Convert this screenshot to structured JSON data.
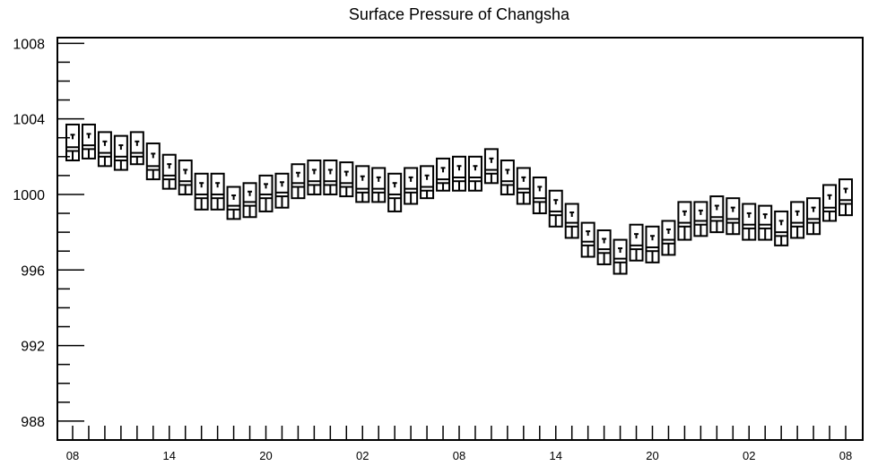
{
  "chart_data": {
    "type": "boxplot",
    "title": "Surface Pressure of Changsha",
    "xlabel": "",
    "ylabel": "",
    "ylim": [
      987,
      1008.3
    ],
    "yticks": [
      988,
      992,
      996,
      1000,
      1004,
      1008
    ],
    "y_tick_labels": [
      "988",
      "992",
      "996",
      "1000",
      "1004",
      "1008"
    ],
    "x_tick_labels": [
      "08",
      "14",
      "20",
      "02",
      "08",
      "14",
      "20",
      "02",
      "08"
    ],
    "x_tick_step": 6,
    "grid": false,
    "legend": "none",
    "series": [
      {
        "whisker_high": [
          1003.7,
          1003.7,
          1003.3,
          1003.1,
          1003.3,
          1002.7,
          1002.1,
          1001.8,
          1001.1,
          1001.1,
          1000.4,
          1000.6,
          1001.0,
          1001.1,
          1001.6,
          1001.8,
          1001.8,
          1001.7,
          1001.5,
          1001.4,
          1001.1,
          1001.4,
          1001.5,
          1001.9,
          1002.0,
          1002.0,
          1002.4,
          1001.8,
          1001.4,
          1000.9,
          1000.2,
          999.5,
          998.5,
          998.1,
          997.6,
          998.4,
          998.3,
          998.6,
          999.6,
          999.6,
          999.9,
          999.8,
          999.5,
          999.4,
          999.1,
          999.6,
          999.8,
          1000.5,
          1000.8
        ],
        "q3": [
          1002.5,
          1002.6,
          1002.2,
          1002.0,
          1002.2,
          1001.5,
          1001.0,
          1000.7,
          1000.0,
          1000.0,
          999.4,
          999.6,
          1000.0,
          1000.1,
          1000.6,
          1000.7,
          1000.7,
          1000.6,
          1000.3,
          1000.3,
          1000.0,
          1000.3,
          1000.4,
          1000.8,
          1000.9,
          1000.9,
          1001.3,
          1000.7,
          1000.3,
          999.8,
          999.1,
          998.5,
          997.5,
          997.1,
          996.6,
          997.3,
          997.2,
          997.6,
          998.5,
          998.6,
          998.8,
          998.7,
          998.4,
          998.4,
          998.0,
          998.5,
          998.7,
          999.3,
          999.7
        ],
        "median": [
          1002.3,
          1002.4,
          1002.0,
          1001.8,
          1002.0,
          1001.3,
          1000.8,
          1000.5,
          999.8,
          999.8,
          999.2,
          999.4,
          999.8,
          999.9,
          1000.4,
          1000.5,
          1000.5,
          1000.4,
          1000.1,
          1000.1,
          999.8,
          1000.1,
          1000.2,
          1000.6,
          1000.7,
          1000.7,
          1001.1,
          1000.5,
          1000.1,
          999.6,
          998.9,
          998.3,
          997.3,
          996.9,
          996.4,
          997.1,
          997.0,
          997.4,
          998.3,
          998.4,
          998.6,
          998.5,
          998.2,
          998.2,
          997.8,
          998.3,
          998.5,
          999.1,
          999.5
        ],
        "q1": [
          1001.8,
          1001.9,
          1001.5,
          1001.3,
          1001.6,
          1000.8,
          1000.3,
          1000.0,
          999.2,
          999.2,
          998.7,
          998.8,
          999.1,
          999.3,
          999.8,
          1000.0,
          1000.0,
          999.9,
          999.6,
          999.6,
          999.1,
          999.5,
          999.8,
          1000.2,
          1000.2,
          1000.2,
          1000.6,
          1000.0,
          999.5,
          999.0,
          998.3,
          997.7,
          996.7,
          996.3,
          995.8,
          996.5,
          996.4,
          996.8,
          997.6,
          997.8,
          998.0,
          997.9,
          997.6,
          997.6,
          997.3,
          997.7,
          997.9,
          998.6,
          998.9
        ],
        "whisker_low": [
          1001.8,
          1001.9,
          1001.5,
          1001.3,
          1001.6,
          1000.8,
          1000.3,
          1000.0,
          999.2,
          999.2,
          998.7,
          998.8,
          999.1,
          999.3,
          999.8,
          1000.0,
          1000.0,
          999.9,
          999.6,
          999.6,
          999.1,
          999.5,
          999.8,
          1000.2,
          1000.2,
          1000.2,
          1000.6,
          1000.0,
          999.5,
          999.0,
          998.3,
          997.7,
          996.7,
          996.3,
          995.8,
          996.5,
          996.4,
          996.8,
          997.6,
          997.8,
          998.0,
          997.9,
          997.6,
          997.6,
          997.3,
          997.7,
          997.9,
          998.6,
          998.9
        ]
      }
    ]
  },
  "colors": {
    "axis": "#000000",
    "box": "#000000",
    "background": "#ffffff"
  }
}
